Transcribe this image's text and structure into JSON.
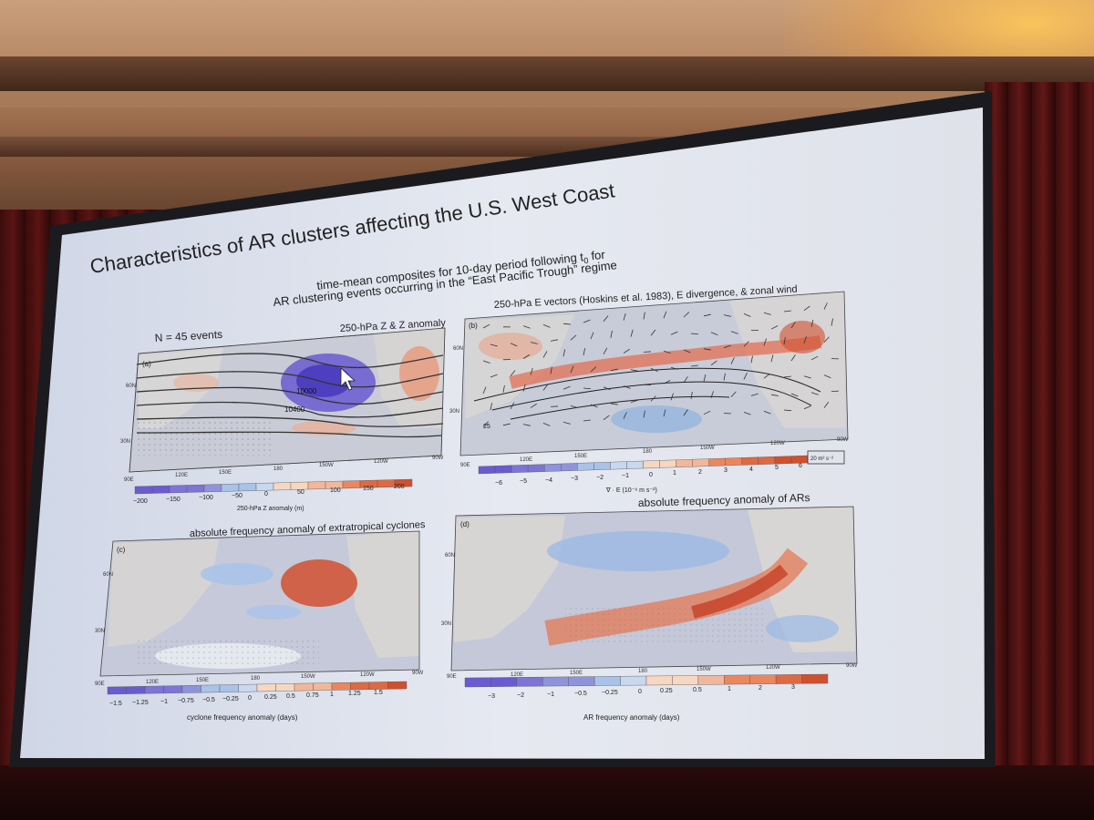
{
  "slide": {
    "title": "Characteristics of AR clusters affecting the U.S. West Coast",
    "subtitle_line1": "time-mean composites for 10-day period following t",
    "subtitle_line1_sub": "0",
    "subtitle_line1_end": " for",
    "subtitle_line2": "AR clustering events occurring in the “East Pacific Trough” regime"
  },
  "panel_a": {
    "label": "(a)",
    "events": "N = 45 events",
    "header": "250-hPa Z & Z anomaly",
    "contour1": "10000",
    "contour2": "10400",
    "lat_labels": [
      "60N",
      "30N"
    ],
    "lon_labels": [
      "90E",
      "120E",
      "150E",
      "180",
      "150W",
      "120W",
      "90W"
    ],
    "colorbar_ticks": [
      "−200",
      "−150",
      "−100",
      "−50",
      "0",
      "50",
      "100",
      "150",
      "200"
    ],
    "colorbar_label": "250-hPa Z anomaly (m)"
  },
  "panel_b": {
    "label": "(b)",
    "header": "250-hPa E vectors (Hoskins et al. 1983), E divergence, & zonal wind",
    "contour1": "25",
    "lat_labels": [
      "60N",
      "30N"
    ],
    "lon_labels": [
      "90E",
      "120E",
      "150E",
      "180",
      "150W",
      "120W",
      "90W"
    ],
    "colorbar_ticks": [
      "−6",
      "−5",
      "−4",
      "−3",
      "−2",
      "−1",
      "0",
      "1",
      "2",
      "3",
      "4",
      "5",
      "6"
    ],
    "colorbar_label": "∇ · E (10⁻⁶ m s⁻²)",
    "vector_scale": "20 m² s⁻²"
  },
  "panel_c": {
    "label": "(c)",
    "header": "absolute frequency anomaly of extratropical cyclones",
    "lat_labels": [
      "60N",
      "30N"
    ],
    "lon_labels": [
      "90E",
      "120E",
      "150E",
      "180",
      "150W",
      "120W",
      "90W"
    ],
    "colorbar_ticks": [
      "−1.5",
      "−1.25",
      "−1",
      "−0.75",
      "−0.5",
      "−0.25",
      "0",
      "0.25",
      "0.5",
      "0.75",
      "1",
      "1.25",
      "1.5"
    ],
    "colorbar_label": "cyclone frequency anomaly (days)"
  },
  "panel_d": {
    "label": "(d)",
    "header": "absolute frequency anomaly of ARs",
    "lat_labels": [
      "60N",
      "30N"
    ],
    "lon_labels": [
      "90E",
      "120E",
      "150E",
      "180",
      "150W",
      "120W",
      "90W"
    ],
    "colorbar_ticks": [
      "−3",
      "−2",
      "−1",
      "−0.5",
      "−0.25",
      "0",
      "0.25",
      "0.5",
      "1",
      "2",
      "3"
    ],
    "colorbar_label": "AR frequency anomaly (days)"
  },
  "colors": {
    "neg_strong": "#6a5bd0",
    "neg_light": "#a9c3e8",
    "neutral": "#f2f2f2",
    "pos_light": "#f2b79a",
    "pos_strong": "#d0502e"
  }
}
